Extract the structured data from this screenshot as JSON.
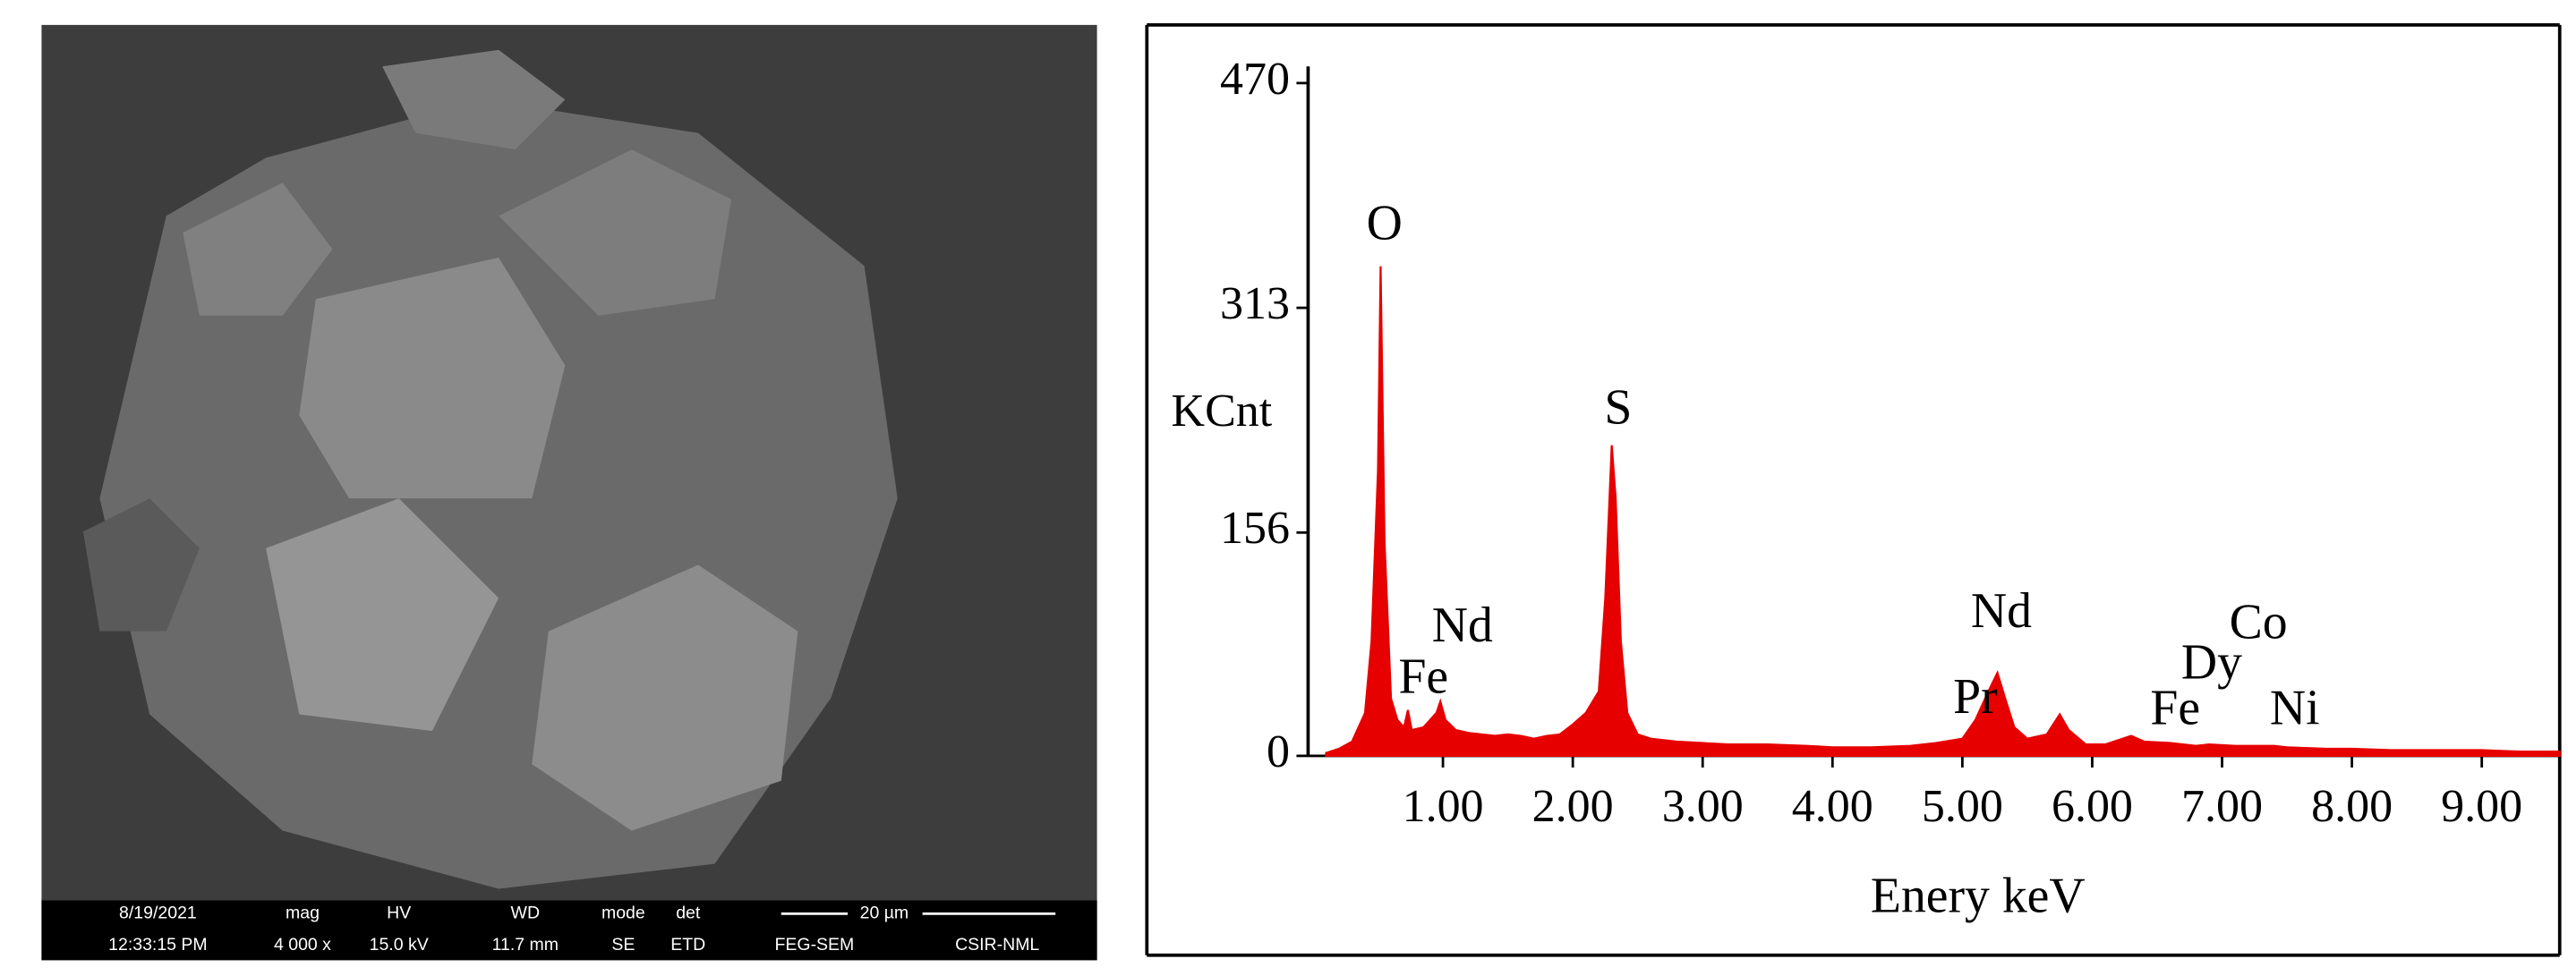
{
  "sem_image": {
    "info_bar": {
      "date": "8/19/2021",
      "time": "12:33:15 PM",
      "mag_label": "mag",
      "mag": "4 000 x",
      "hv_label": "HV",
      "hv": "15.0 kV",
      "wd_label": "WD",
      "wd": "11.7 mm",
      "mode_label": "mode",
      "mode": "SE",
      "det_label": "det",
      "det": "ETD",
      "scale": "20 µm",
      "instrument": "FEG-SEM",
      "lab": "CSIR-NML"
    }
  },
  "chart_data": {
    "type": "area",
    "y_label": "KCnt",
    "x_label": "Enery keV",
    "color": "#e60000",
    "x": [
      0.1,
      0.2,
      0.3,
      0.4,
      0.45,
      0.5,
      0.52,
      0.55,
      0.6,
      0.65,
      0.7,
      0.73,
      0.76,
      0.85,
      0.95,
      0.98,
      1.02,
      1.1,
      1.2,
      1.3,
      1.4,
      1.5,
      1.6,
      1.7,
      1.8,
      1.9,
      2.0,
      2.1,
      2.2,
      2.25,
      2.3,
      2.33,
      2.37,
      2.42,
      2.5,
      2.6,
      2.8,
      3.0,
      3.2,
      3.5,
      3.8,
      4.0,
      4.3,
      4.6,
      4.8,
      5.0,
      5.1,
      5.2,
      5.27,
      5.33,
      5.4,
      5.5,
      5.65,
      5.75,
      5.82,
      5.95,
      6.1,
      6.3,
      6.4,
      6.6,
      6.8,
      6.9,
      7.1,
      7.4,
      7.5,
      7.8,
      8.0,
      8.3,
      8.6,
      9.0,
      9.3,
      9.6
    ],
    "values": [
      2,
      5,
      10,
      30,
      80,
      200,
      342,
      150,
      40,
      25,
      20,
      32,
      18,
      20,
      30,
      38,
      25,
      18,
      16,
      15,
      14,
      15,
      14,
      12,
      14,
      15,
      22,
      30,
      45,
      110,
      217,
      180,
      80,
      30,
      15,
      12,
      10,
      9,
      8,
      8,
      7,
      6,
      6,
      7,
      9,
      12,
      25,
      45,
      58,
      40,
      20,
      12,
      15,
      29,
      18,
      8,
      8,
      14,
      10,
      9,
      7,
      8,
      7,
      7,
      6,
      5,
      5,
      4,
      4,
      4,
      3,
      3
    ],
    "xlim": [
      0,
      9.6
    ],
    "ylim": [
      0,
      470
    ],
    "xticks": [
      {
        "value": 1,
        "label": "1.00"
      },
      {
        "value": 2,
        "label": "2.00"
      },
      {
        "value": 3,
        "label": "3.00"
      },
      {
        "value": 4,
        "label": "4.00"
      },
      {
        "value": 5,
        "label": "5.00"
      },
      {
        "value": 6,
        "label": "6.00"
      },
      {
        "value": 7,
        "label": "7.00"
      },
      {
        "value": 8,
        "label": "8.00"
      },
      {
        "value": 9,
        "label": "9.00"
      }
    ],
    "yticks": [
      0,
      156,
      313,
      470
    ],
    "annotations": [
      {
        "text": "O",
        "x": 0.55,
        "y": 369
      },
      {
        "text": "S",
        "x": 2.35,
        "y": 240
      },
      {
        "text": "Nd",
        "x": 1.15,
        "y": 88
      },
      {
        "text": "Fe",
        "x": 0.85,
        "y": 52
      },
      {
        "text": "Nd",
        "x": 5.3,
        "y": 98
      },
      {
        "text": "Pr",
        "x": 5.1,
        "y": 38
      },
      {
        "text": "Fe",
        "x": 6.64,
        "y": 30
      },
      {
        "text": "Dy",
        "x": 6.92,
        "y": 62
      },
      {
        "text": "Co",
        "x": 7.28,
        "y": 90
      },
      {
        "text": "Ni",
        "x": 7.56,
        "y": 30
      }
    ]
  }
}
